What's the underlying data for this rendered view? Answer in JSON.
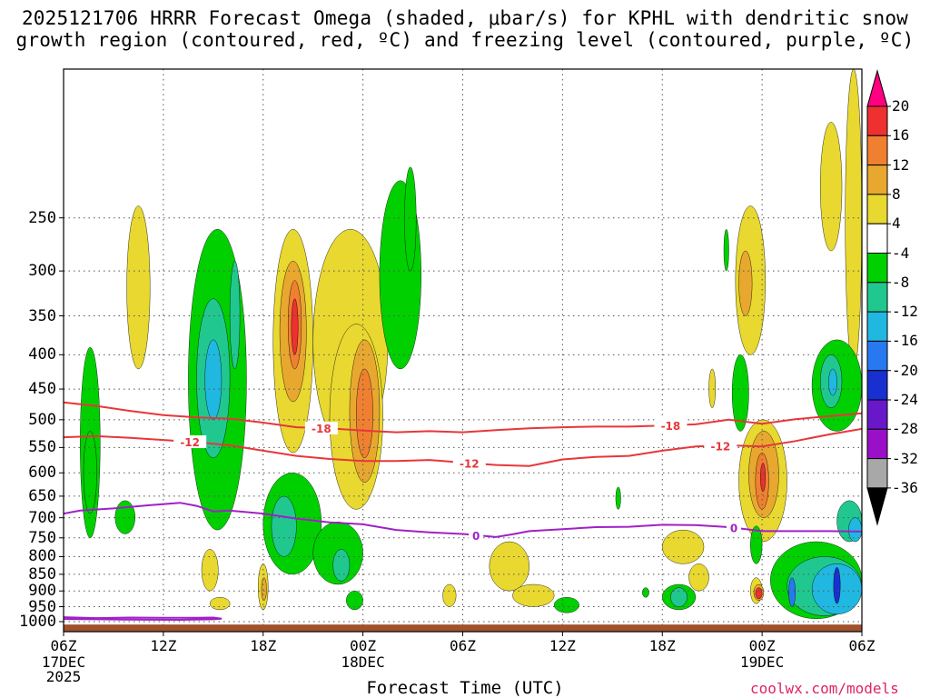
{
  "title_line1": "2025121706 HRRR Forecast Omega (shaded, μbar/s) for KPHL with dendritic snow",
  "title_line2": "growth region (contoured, red, ºC) and freezing level (contoured, purple, ºC)",
  "credit": "coolwx.com/models",
  "chart_data": {
    "type": "time-height cross section",
    "xlabel": "Forecast Time (UTC)",
    "x_ticks": [
      {
        "label": "06Z",
        "hour": 0,
        "sub": [
          "17DEC",
          "2025"
        ]
      },
      {
        "label": "12Z",
        "hour": 6
      },
      {
        "label": "18Z",
        "hour": 12
      },
      {
        "label": "00Z",
        "hour": 18,
        "sub": [
          "18DEC"
        ]
      },
      {
        "label": "06Z",
        "hour": 24
      },
      {
        "label": "12Z",
        "hour": 30
      },
      {
        "label": "18Z",
        "hour": 36
      },
      {
        "label": "00Z",
        "hour": 42,
        "sub": [
          "19DEC"
        ]
      },
      {
        "label": "06Z",
        "hour": 48
      }
    ],
    "xlim": [
      0,
      48
    ],
    "y_ticks": [
      250,
      300,
      350,
      400,
      450,
      500,
      550,
      600,
      650,
      700,
      750,
      800,
      850,
      900,
      950,
      1000
    ],
    "ylim_hPa": [
      150,
      1035
    ],
    "colorbar": {
      "units": "μbar/s",
      "levels": [
        20,
        16,
        12,
        8,
        4,
        -4,
        -8,
        -12,
        -16,
        -20,
        -24,
        -28,
        -32,
        -36
      ],
      "colors": [
        "#ff0080",
        "#ee3030",
        "#f08030",
        "#e8a830",
        "#e8d830",
        "#ffffff",
        "#00d000",
        "#20c890",
        "#20b8e0",
        "#2878f0",
        "#1830d0",
        "#6818c8",
        "#9a10c8",
        "#a8a8a8",
        "#000000"
      ]
    },
    "shaded_cells": [
      {
        "t": [
          1.0,
          2.2
        ],
        "p": [
          390,
          750
        ],
        "v": -6
      },
      {
        "t": [
          1.2,
          2.0
        ],
        "p": [
          520,
          690
        ],
        "v": -7
      },
      {
        "t": [
          3.1,
          4.3
        ],
        "p": [
          660,
          740
        ],
        "v": -6
      },
      {
        "t": [
          3.8,
          5.2
        ],
        "p": [
          240,
          420
        ],
        "v": 5
      },
      {
        "t": [
          7.5,
          11.0
        ],
        "p": [
          260,
          730
        ],
        "v": -7
      },
      {
        "t": [
          8.0,
          10.0
        ],
        "p": [
          330,
          570
        ],
        "v": -11
      },
      {
        "t": [
          8.5,
          9.5
        ],
        "p": [
          380,
          500
        ],
        "v": -14
      },
      {
        "t": [
          10.0,
          10.6
        ],
        "p": [
          290,
          420
        ],
        "v": -12
      },
      {
        "t": [
          12.6,
          15.0
        ],
        "p": [
          260,
          560
        ],
        "v": 5
      },
      {
        "t": [
          13.0,
          14.6
        ],
        "p": [
          290,
          470
        ],
        "v": 9
      },
      {
        "t": [
          13.5,
          14.3
        ],
        "p": [
          310,
          420
        ],
        "v": 14
      },
      {
        "t": [
          13.7,
          14.1
        ],
        "p": [
          330,
          400
        ],
        "v": 18
      },
      {
        "t": [
          15.0,
          19.5
        ],
        "p": [
          260,
          560
        ],
        "v": 5
      },
      {
        "t": [
          16.0,
          19.2
        ],
        "p": [
          360,
          680
        ],
        "v": 6
      },
      {
        "t": [
          17.2,
          19.0
        ],
        "p": [
          380,
          620
        ],
        "v": 10
      },
      {
        "t": [
          17.6,
          18.6
        ],
        "p": [
          420,
          570
        ],
        "v": 13
      },
      {
        "t": [
          19.0,
          21.5
        ],
        "p": [
          220,
          420
        ],
        "v": -6
      },
      {
        "t": [
          20.5,
          21.2
        ],
        "p": [
          210,
          300
        ],
        "v": -6
      },
      {
        "t": [
          12.0,
          15.5
        ],
        "p": [
          600,
          850
        ],
        "v": -6
      },
      {
        "t": [
          12.5,
          14.0
        ],
        "p": [
          650,
          800
        ],
        "v": -9
      },
      {
        "t": [
          15.0,
          18.0
        ],
        "p": [
          710,
          880
        ],
        "v": -6
      },
      {
        "t": [
          16.2,
          17.2
        ],
        "p": [
          780,
          870
        ],
        "v": -10
      },
      {
        "t": [
          8.3,
          9.3
        ],
        "p": [
          780,
          900
        ],
        "v": 5
      },
      {
        "t": [
          8.8,
          10.0
        ],
        "p": [
          920,
          960
        ],
        "v": 5
      },
      {
        "t": [
          11.7,
          12.3
        ],
        "p": [
          820,
          960
        ],
        "v": 5
      },
      {
        "t": [
          11.9,
          12.2
        ],
        "p": [
          860,
          930
        ],
        "v": 10
      },
      {
        "t": [
          17.0,
          18.0
        ],
        "p": [
          900,
          960
        ],
        "v": -6
      },
      {
        "t": [
          22.8,
          23.6
        ],
        "p": [
          880,
          950
        ],
        "v": 5
      },
      {
        "t": [
          25.6,
          28.0
        ],
        "p": [
          760,
          900
        ],
        "v": 5
      },
      {
        "t": [
          27.0,
          29.5
        ],
        "p": [
          880,
          950
        ],
        "v": 5
      },
      {
        "t": [
          29.5,
          31.0
        ],
        "p": [
          920,
          970
        ],
        "v": -6
      },
      {
        "t": [
          33.2,
          33.5
        ],
        "p": [
          630,
          680
        ],
        "v": -6
      },
      {
        "t": [
          34.8,
          35.2
        ],
        "p": [
          890,
          920
        ],
        "v": -6
      },
      {
        "t": [
          36.0,
          38.5
        ],
        "p": [
          730,
          820
        ],
        "v": 5
      },
      {
        "t": [
          36.0,
          38.0
        ],
        "p": [
          880,
          960
        ],
        "v": -7
      },
      {
        "t": [
          36.5,
          37.5
        ],
        "p": [
          890,
          950
        ],
        "v": -10
      },
      {
        "t": [
          37.6,
          38.8
        ],
        "p": [
          820,
          900
        ],
        "v": 5
      },
      {
        "t": [
          38.8,
          39.2
        ],
        "p": [
          420,
          480
        ],
        "v": 5
      },
      {
        "t": [
          39.7,
          40.0
        ],
        "p": [
          260,
          300
        ],
        "v": -6
      },
      {
        "t": [
          40.2,
          41.2
        ],
        "p": [
          400,
          520
        ],
        "v": -6
      },
      {
        "t": [
          40.4,
          42.2
        ],
        "p": [
          240,
          400
        ],
        "v": 5
      },
      {
        "t": [
          40.6,
          41.4
        ],
        "p": [
          280,
          350
        ],
        "v": 10
      },
      {
        "t": [
          40.6,
          43.5
        ],
        "p": [
          500,
          760
        ],
        "v": 5
      },
      {
        "t": [
          41.2,
          43.0
        ],
        "p": [
          520,
          700
        ],
        "v": 8
      },
      {
        "t": [
          41.6,
          42.4
        ],
        "p": [
          560,
          680
        ],
        "v": 12
      },
      {
        "t": [
          41.9,
          42.2
        ],
        "p": [
          580,
          640
        ],
        "v": 18
      },
      {
        "t": [
          41.3,
          42.0
        ],
        "p": [
          720,
          820
        ],
        "v": -6
      },
      {
        "t": [
          41.3,
          42.0
        ],
        "p": [
          860,
          940
        ],
        "v": 5
      },
      {
        "t": [
          41.5,
          42.1
        ],
        "p": [
          880,
          930
        ],
        "v": 10
      },
      {
        "t": [
          41.6,
          42.0
        ],
        "p": [
          890,
          925
        ],
        "v": 18
      },
      {
        "t": [
          45.5,
          46.8
        ],
        "p": [
          180,
          280
        ],
        "v": 5
      },
      {
        "t": [
          47.0,
          48.0
        ],
        "p": [
          150,
          420
        ],
        "v": 5
      },
      {
        "t": [
          45.0,
          48.0
        ],
        "p": [
          380,
          520
        ],
        "v": -7
      },
      {
        "t": [
          45.5,
          46.8
        ],
        "p": [
          400,
          480
        ],
        "v": -11
      },
      {
        "t": [
          46.0,
          46.5
        ],
        "p": [
          420,
          460
        ],
        "v": -14
      },
      {
        "t": [
          42.5,
          48.0
        ],
        "p": [
          760,
          990
        ],
        "v": -7
      },
      {
        "t": [
          43.5,
          48.0
        ],
        "p": [
          800,
          980
        ],
        "v": -11
      },
      {
        "t": [
          45.0,
          48.0
        ],
        "p": [
          820,
          975
        ],
        "v": -14
      },
      {
        "t": [
          46.5,
          48.0
        ],
        "p": [
          660,
          760
        ],
        "v": -12
      },
      {
        "t": [
          47.2,
          48.0
        ],
        "p": [
          700,
          760
        ],
        "v": -16
      },
      {
        "t": [
          46.3,
          46.7
        ],
        "p": [
          830,
          940
        ],
        "v": -22
      },
      {
        "t": [
          43.6,
          44.0
        ],
        "p": [
          860,
          950
        ],
        "v": -18
      }
    ],
    "contours": [
      {
        "name": "dendritic -18 °C",
        "color": "#e8363a",
        "labels": [
          {
            "t": 15.5,
            "text": "-18"
          },
          {
            "t": 36.5,
            "text": "-18"
          }
        ],
        "points": [
          [
            0,
            471
          ],
          [
            2,
            477
          ],
          [
            4,
            485
          ],
          [
            6,
            492
          ],
          [
            8,
            496
          ],
          [
            10,
            498
          ],
          [
            12,
            505
          ],
          [
            14,
            513
          ],
          [
            16,
            515
          ],
          [
            18,
            519
          ],
          [
            20,
            522
          ],
          [
            22,
            520
          ],
          [
            24,
            522
          ],
          [
            26,
            518
          ],
          [
            28,
            515
          ],
          [
            30,
            513
          ],
          [
            32,
            512
          ],
          [
            34,
            512
          ],
          [
            36,
            510
          ],
          [
            38,
            508
          ],
          [
            40,
            500
          ],
          [
            42,
            507
          ],
          [
            44,
            499
          ],
          [
            46,
            494
          ],
          [
            48,
            489
          ]
        ]
      },
      {
        "name": "dendritic -12 °C",
        "color": "#e8363a",
        "labels": [
          {
            "t": 7.6,
            "text": "-12"
          },
          {
            "t": 24.4,
            "text": "-12"
          },
          {
            "t": 39.5,
            "text": "-12"
          }
        ],
        "points": [
          [
            0,
            531
          ],
          [
            2,
            529
          ],
          [
            4,
            532
          ],
          [
            6,
            536
          ],
          [
            8,
            540
          ],
          [
            10,
            546
          ],
          [
            12,
            556
          ],
          [
            14,
            566
          ],
          [
            16,
            572
          ],
          [
            18,
            576
          ],
          [
            20,
            576
          ],
          [
            22,
            574
          ],
          [
            24,
            579
          ],
          [
            26,
            584
          ],
          [
            28,
            586
          ],
          [
            30,
            573
          ],
          [
            32,
            568
          ],
          [
            34,
            566
          ],
          [
            36,
            556
          ],
          [
            38,
            548
          ],
          [
            40,
            546
          ],
          [
            42,
            548
          ],
          [
            44,
            538
          ],
          [
            46,
            526
          ],
          [
            48,
            516
          ]
        ]
      },
      {
        "name": "freezing level 0 °C",
        "color": "#a020c8",
        "labels": [
          {
            "t": 24.8,
            "text": "0"
          },
          {
            "t": 40.3,
            "text": "0"
          }
        ],
        "points": [
          [
            0,
            690
          ],
          [
            1,
            683
          ],
          [
            3,
            678
          ],
          [
            5,
            671
          ],
          [
            7,
            665
          ],
          [
            8,
            672
          ],
          [
            9,
            685
          ],
          [
            10,
            683
          ],
          [
            12,
            690
          ],
          [
            14,
            702
          ],
          [
            16,
            711
          ],
          [
            18,
            716
          ],
          [
            20,
            730
          ],
          [
            22,
            736
          ],
          [
            24,
            740
          ],
          [
            26,
            748
          ],
          [
            27,
            741
          ],
          [
            28,
            733
          ],
          [
            30,
            728
          ],
          [
            32,
            723
          ],
          [
            34,
            722
          ],
          [
            36,
            717
          ],
          [
            38,
            718
          ],
          [
            40,
            723
          ],
          [
            42,
            733
          ],
          [
            44,
            733
          ],
          [
            46,
            733
          ],
          [
            48,
            734
          ]
        ]
      },
      {
        "name": "freezing level 0 °C (surface)",
        "color": "#a020c8",
        "labels": [],
        "points": [
          [
            0,
            985
          ],
          [
            2,
            988
          ],
          [
            4,
            986
          ],
          [
            6,
            987
          ],
          [
            8,
            987
          ],
          [
            9,
            986
          ],
          [
            9.5,
            990
          ],
          [
            9,
            992
          ],
          [
            7,
            994
          ],
          [
            4,
            993
          ],
          [
            2,
            992
          ],
          [
            0,
            991
          ]
        ]
      }
    ],
    "terrain": {
      "surface_hPa": 1010,
      "color": "#a0522d"
    }
  }
}
